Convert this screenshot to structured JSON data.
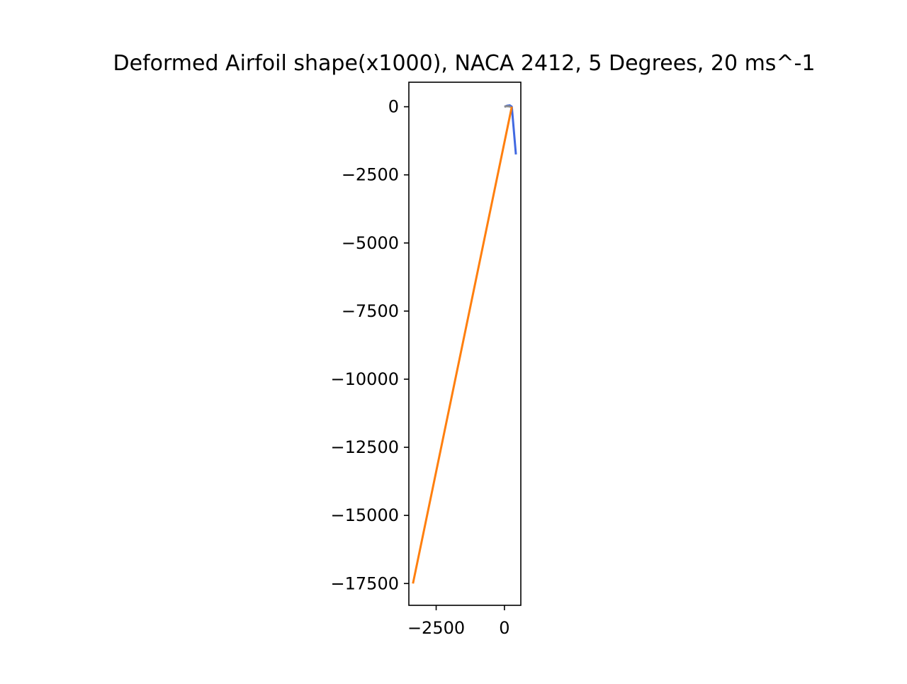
{
  "chart_data": {
    "type": "line",
    "title": "Deformed Airfoil shape(x1000), NACA 2412, 5 Degrees, 20 ms^-1",
    "xlabel": "",
    "ylabel": "",
    "xlim": [
      -3500,
      600
    ],
    "ylim": [
      -18300,
      900
    ],
    "x_ticks": [
      -2500,
      0
    ],
    "x_tick_labels": [
      "−2500",
      "0"
    ],
    "y_ticks": [
      0,
      -2500,
      -5000,
      -7500,
      -10000,
      -12500,
      -15000,
      -17500
    ],
    "y_tick_labels": [
      "0",
      "−2500",
      "−5000",
      "−7500",
      "−10000",
      "−12500",
      "−15000",
      "−17500"
    ],
    "grid": false,
    "legend": "none",
    "series": [
      {
        "color": "#4169e1",
        "x": [
          0,
          100,
          200,
          270,
          420
        ],
        "y": [
          0,
          40,
          50,
          0,
          -1750
        ]
      },
      {
        "color": "#ff7f0e",
        "x": [
          -3350,
          270
        ],
        "y": [
          -17500,
          0
        ]
      },
      {
        "color": "#8c8c8c",
        "x": [
          0,
          80,
          160,
          230
        ],
        "y": [
          0,
          20,
          15,
          0
        ]
      }
    ]
  }
}
